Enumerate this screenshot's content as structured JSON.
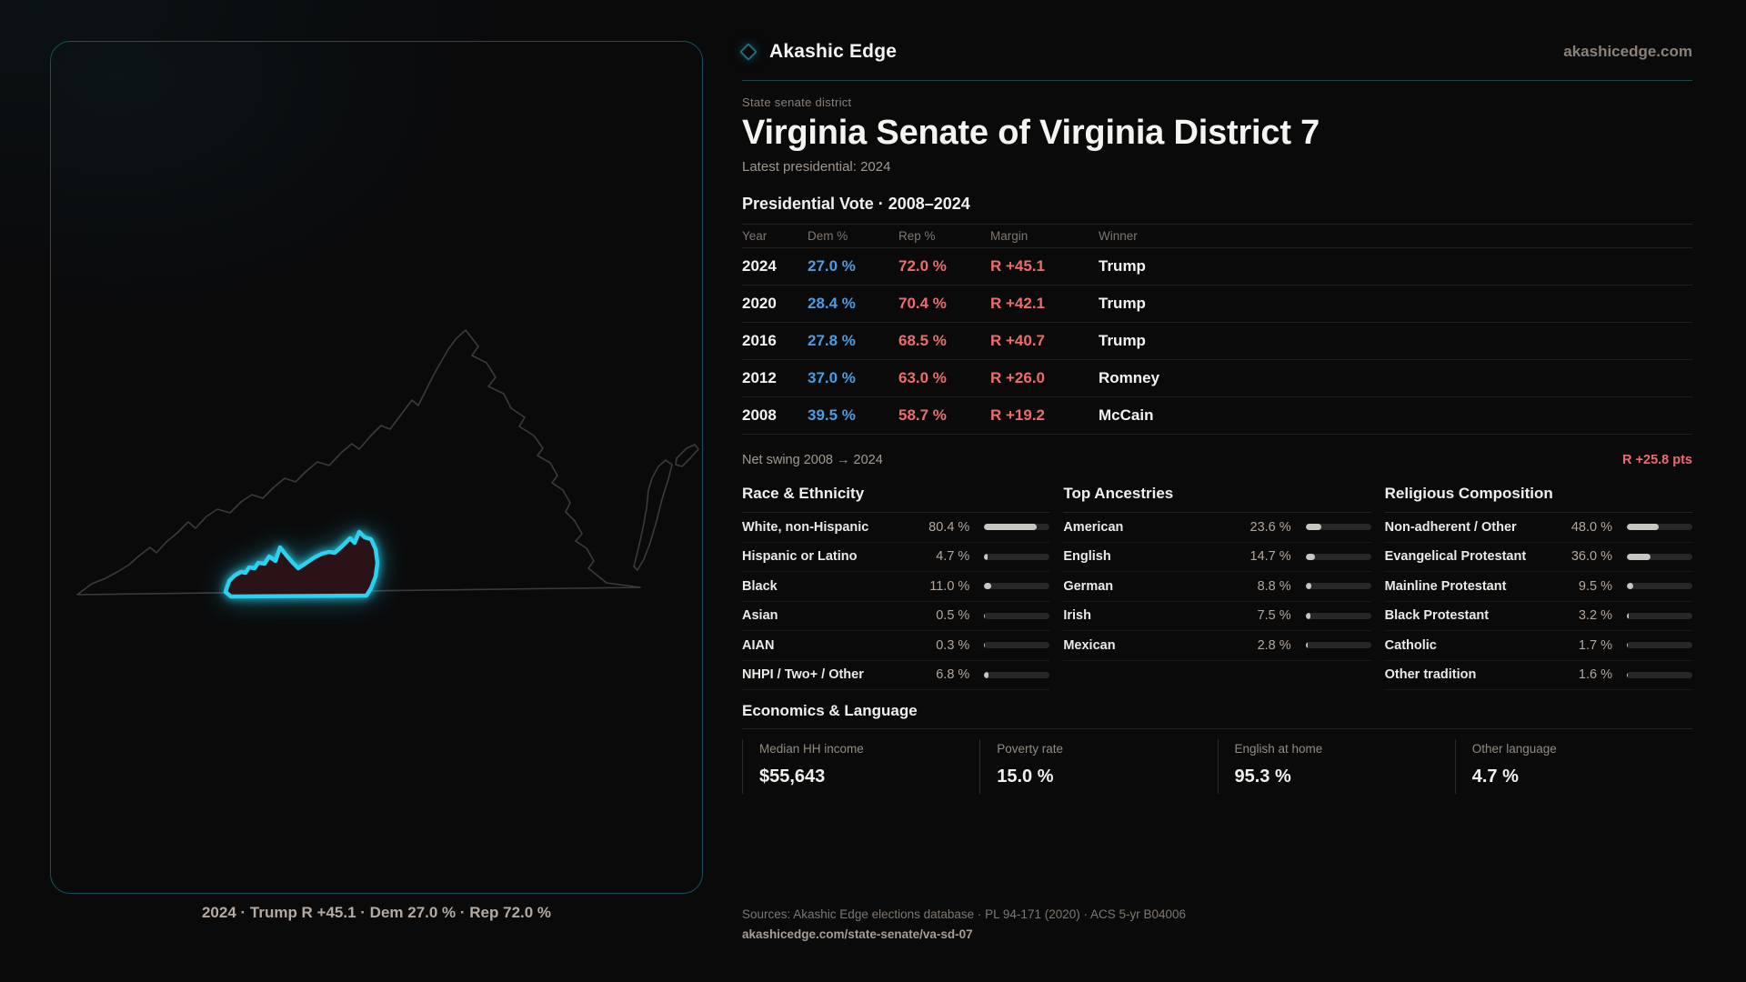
{
  "brand": {
    "name": "Akashic Edge",
    "domain": "akashicedge.com"
  },
  "header": {
    "kicker": "State senate district",
    "title": "Virginia Senate of Virginia District 7",
    "latest": "Latest presidential: 2024"
  },
  "map": {
    "caption": "2024 · Trump R +45.1 · Dem 27.0 % · Rep 72.0 %",
    "district_name": "Virginia Senate District 7"
  },
  "vote_table": {
    "title": "Presidential Vote · 2008–2024",
    "columns": [
      "Year",
      "Dem %",
      "Rep %",
      "Margin",
      "Winner"
    ],
    "rows": [
      {
        "year": "2024",
        "dem": "27.0 %",
        "rep": "72.0 %",
        "margin": "R +45.1",
        "winner": "Trump"
      },
      {
        "year": "2020",
        "dem": "28.4 %",
        "rep": "70.4 %",
        "margin": "R +42.1",
        "winner": "Trump"
      },
      {
        "year": "2016",
        "dem": "27.8 %",
        "rep": "68.5 %",
        "margin": "R +40.7",
        "winner": "Trump"
      },
      {
        "year": "2012",
        "dem": "37.0 %",
        "rep": "63.0 %",
        "margin": "R +26.0",
        "winner": "Romney"
      },
      {
        "year": "2008",
        "dem": "39.5 %",
        "rep": "58.7 %",
        "margin": "R +19.2",
        "winner": "McCain"
      }
    ],
    "net_swing_label": "Net swing 2008 → 2024",
    "net_swing_value": "R +25.8 pts"
  },
  "demographics": {
    "race": {
      "heading": "Race & Ethnicity",
      "rows": [
        {
          "label": "White, non-Hispanic",
          "value": "80.4 %",
          "pct": 80.4
        },
        {
          "label": "Hispanic or Latino",
          "value": "4.7 %",
          "pct": 4.7
        },
        {
          "label": "Black",
          "value": "11.0 %",
          "pct": 11.0
        },
        {
          "label": "Asian",
          "value": "0.5 %",
          "pct": 0.5
        },
        {
          "label": "AIAN",
          "value": "0.3 %",
          "pct": 0.3
        },
        {
          "label": "NHPI / Two+ / Other",
          "value": "6.8 %",
          "pct": 6.8
        }
      ]
    },
    "ancestries": {
      "heading": "Top Ancestries",
      "rows": [
        {
          "label": "American",
          "value": "23.6 %",
          "pct": 23.6
        },
        {
          "label": "English",
          "value": "14.7 %",
          "pct": 14.7
        },
        {
          "label": "German",
          "value": "8.8 %",
          "pct": 8.8
        },
        {
          "label": "Irish",
          "value": "7.5 %",
          "pct": 7.5
        },
        {
          "label": "Mexican",
          "value": "2.8 %",
          "pct": 2.8
        }
      ]
    },
    "religion": {
      "heading": "Religious Composition",
      "rows": [
        {
          "label": "Non-adherent / Other",
          "value": "48.0 %",
          "pct": 48.0
        },
        {
          "label": "Evangelical Protestant",
          "value": "36.0 %",
          "pct": 36.0
        },
        {
          "label": "Mainline Protestant",
          "value": "9.5 %",
          "pct": 9.5
        },
        {
          "label": "Black Protestant",
          "value": "3.2 %",
          "pct": 3.2
        },
        {
          "label": "Catholic",
          "value": "1.7 %",
          "pct": 1.7
        },
        {
          "label": "Other tradition",
          "value": "1.6 %",
          "pct": 1.6
        }
      ]
    }
  },
  "economics": {
    "heading": "Economics & Language",
    "stats": [
      {
        "label": "Median HH income",
        "value": "$55,643"
      },
      {
        "label": "Poverty rate",
        "value": "15.0 %"
      },
      {
        "label": "English at home",
        "value": "95.3 %"
      },
      {
        "label": "Other language",
        "value": "4.7 %"
      }
    ]
  },
  "footer": {
    "sources": "Sources: Akashic Edge elections database · PL 94-171 (2020) · ACS 5-yr B04006",
    "url": "akashicedge.com/state-senate/va-sd-07"
  },
  "colors": {
    "dem_blue": "#4a9de2",
    "rep_red": "#ed6d6d",
    "district_cyan": "#2bd1ee",
    "accent_teal": "#1f6e7c"
  }
}
